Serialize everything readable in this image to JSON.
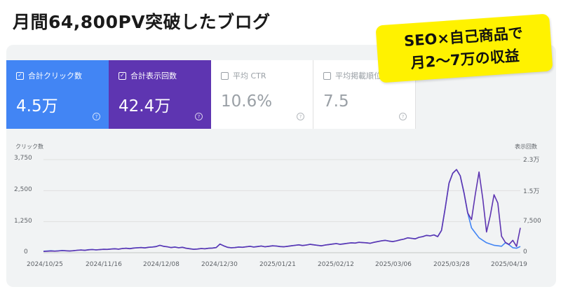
{
  "headline": "月間64,800PV突破したブログ",
  "badge": {
    "line1": "SEO×自己商品で",
    "line2": "月2〜7万の収益"
  },
  "metrics": {
    "clicks": {
      "label": "合計クリック数",
      "value": "4.5万",
      "checked": true
    },
    "impressions": {
      "label": "合計表示回数",
      "value": "42.4万",
      "checked": true
    },
    "ctr": {
      "label": "平均 CTR",
      "value": "10.6%",
      "checked": false
    },
    "position": {
      "label": "平均掲載順位",
      "value": "7.5",
      "checked": false
    }
  },
  "colors": {
    "clicks": "#4285f4",
    "impressions": "#5e35b1",
    "badge": "#fff200"
  },
  "icons": {
    "checkbox": "checkbox-icon",
    "help": "help-circle-icon"
  },
  "chart_data": {
    "type": "line",
    "left_axis": {
      "label": "クリック数",
      "ticks": [
        "3,750",
        "2,500",
        "1,250",
        "0"
      ],
      "range": [
        0,
        3750
      ]
    },
    "right_axis": {
      "label": "表示回数",
      "ticks": [
        "2.3万",
        "1.5万",
        "7,500",
        "0"
      ],
      "range": [
        0,
        22500
      ]
    },
    "x_ticks": [
      "2024/10/25",
      "2024/11/16",
      "2024/12/08",
      "2024/12/30",
      "2025/01/21",
      "2025/02/12",
      "2025/03/06",
      "2025/03/28",
      "2025/04/19"
    ],
    "series": [
      {
        "axis": "left",
        "color": "#4285f4",
        "values": [
          60,
          70,
          80,
          65,
          75,
          90,
          80,
          70,
          85,
          100,
          110,
          95,
          120,
          130,
          115,
          125,
          140,
          135,
          150,
          160,
          145,
          170,
          180,
          165,
          190,
          200,
          210,
          195,
          220,
          230,
          250,
          300,
          260,
          240,
          210,
          230,
          200,
          220,
          180,
          160,
          140,
          150,
          170,
          160,
          180,
          190,
          210,
          350,
          280,
          220,
          200,
          210,
          230,
          220,
          240,
          260,
          230,
          250,
          270,
          240,
          260,
          280,
          270,
          250,
          240,
          260,
          280,
          300,
          320,
          290,
          310,
          340,
          320,
          300,
          280,
          310,
          330,
          350,
          370,
          340,
          360,
          380,
          400,
          390,
          420,
          410,
          400,
          380,
          420,
          450,
          480,
          500,
          470,
          450,
          480,
          520,
          550,
          600,
          580,
          560,
          620,
          650,
          700,
          680,
          720,
          650,
          900,
          1800,
          2800,
          3200,
          3350,
          3100,
          2400,
          1600,
          1000,
          800,
          600,
          500,
          400,
          350,
          300,
          280,
          260,
          400,
          320,
          200,
          180,
          250
        ]
      },
      {
        "axis": "right",
        "color": "#5e35b1",
        "values": [
          300,
          350,
          400,
          380,
          420,
          500,
          460,
          400,
          480,
          600,
          650,
          580,
          700,
          760,
          680,
          740,
          820,
          800,
          880,
          940,
          860,
          1000,
          1060,
          970,
          1120,
          1180,
          1240,
          1150,
          1300,
          1360,
          1480,
          1780,
          1540,
          1420,
          1240,
          1360,
          1180,
          1300,
          1060,
          940,
          820,
          880,
          1000,
          940,
          1060,
          1120,
          1240,
          2080,
          1660,
          1300,
          1180,
          1240,
          1360,
          1300,
          1420,
          1540,
          1360,
          1480,
          1600,
          1420,
          1540,
          1660,
          1600,
          1480,
          1420,
          1540,
          1660,
          1780,
          1900,
          1720,
          1840,
          2020,
          1900,
          1780,
          1660,
          1840,
          1960,
          2080,
          2200,
          2020,
          2140,
          2260,
          2380,
          2320,
          2500,
          2440,
          2380,
          2260,
          2500,
          2680,
          2860,
          2980,
          2800,
          2680,
          2860,
          3100,
          3280,
          3580,
          3460,
          3340,
          3700,
          3880,
          4180,
          4060,
          4300,
          3880,
          5380,
          10800,
          16800,
          19200,
          20100,
          18600,
          14500,
          9600,
          8000,
          14000,
          19500,
          13000,
          5000,
          9000,
          14000,
          12000,
          4000,
          2500,
          2000,
          3000,
          1500,
          6000
        ]
      }
    ]
  }
}
